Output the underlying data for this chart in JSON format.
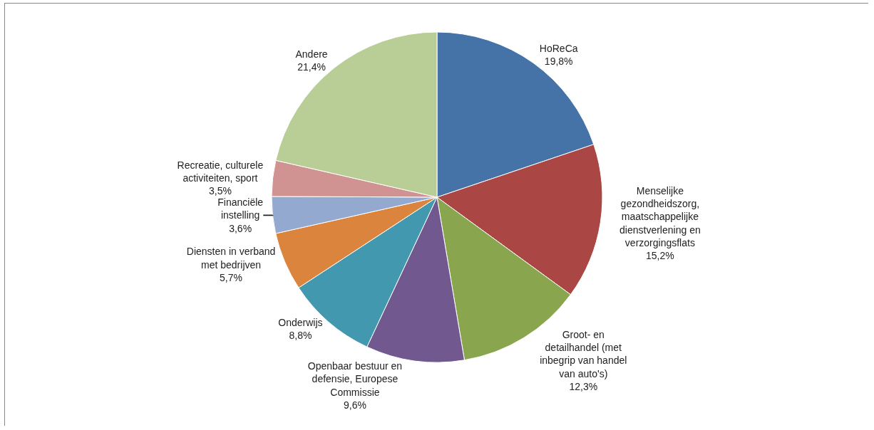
{
  "chart_data": {
    "type": "pie",
    "categories": [
      "HoReCa",
      "Menselijke gezondheidszorg, maatschappelijke dienstverlening en verzorgingsflats",
      "Groot- en detailhandel (met inbegrip van handel van auto's)",
      "Openbaar bestuur en defensie, Europese Commissie",
      "Onderwijs",
      "Diensten in verband met bedrijven",
      "Financiële instelling",
      "Recreatie, culturele activiteiten, sport",
      "Andere"
    ],
    "values": [
      19.8,
      15.2,
      12.3,
      9.6,
      8.8,
      5.7,
      3.6,
      3.5,
      21.4
    ],
    "value_labels": [
      "19,8%",
      "15,2%",
      "12,3%",
      "9,6%",
      "8,8%",
      "5,7%",
      "3,6%",
      "3,5%",
      "21,4%"
    ],
    "colors": [
      "#4572a7",
      "#aa4643",
      "#89a54e",
      "#71588f",
      "#4198af",
      "#db843d",
      "#93a9cf",
      "#d19392",
      "#b9cd96"
    ],
    "legend": false
  }
}
